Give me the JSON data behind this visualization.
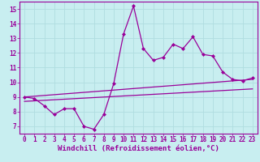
{
  "title": "",
  "xlabel": "Windchill (Refroidissement éolien,°C)",
  "ylabel": "",
  "bg_color": "#c8eef0",
  "line_color": "#990099",
  "grid_color": "#b0dde0",
  "xlim": [
    -0.5,
    23.5
  ],
  "ylim": [
    6.5,
    15.5
  ],
  "xticks": [
    0,
    1,
    2,
    3,
    4,
    5,
    6,
    7,
    8,
    9,
    10,
    11,
    12,
    13,
    14,
    15,
    16,
    17,
    18,
    19,
    20,
    21,
    22,
    23
  ],
  "yticks": [
    7,
    8,
    9,
    10,
    11,
    12,
    13,
    14,
    15
  ],
  "main_x": [
    0,
    1,
    2,
    3,
    4,
    5,
    6,
    7,
    8,
    9,
    10,
    11,
    12,
    13,
    14,
    15,
    16,
    17,
    18,
    19,
    20,
    21,
    22,
    23
  ],
  "main_y": [
    9.0,
    8.9,
    8.4,
    7.8,
    8.2,
    8.2,
    7.0,
    6.8,
    7.8,
    9.9,
    13.3,
    15.2,
    12.3,
    11.5,
    11.7,
    12.6,
    12.3,
    13.1,
    11.9,
    11.8,
    10.7,
    10.2,
    10.1,
    10.3
  ],
  "line1_x": [
    0,
    23
  ],
  "line1_y": [
    9.0,
    10.2
  ],
  "line2_x": [
    0,
    23
  ],
  "line2_y": [
    8.7,
    9.55
  ],
  "tick_fontsize": 5.5,
  "label_fontsize": 6.5
}
